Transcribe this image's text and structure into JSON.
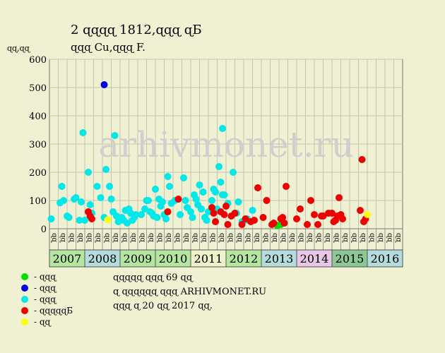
{
  "chart_data": {
    "type": "scatter",
    "title": "2 ɋɋɋɋ 1812,ɋɋɋ ɋБ",
    "subtitle": "ɋɋɋ Cu,ɋɋɋ F.",
    "ylabel": "ɋɋ,ɋɋ",
    "ylim": [
      0,
      600
    ],
    "yticks": [
      0,
      100,
      200,
      300,
      400,
      500,
      600
    ],
    "grid": true,
    "background_text": "arhivmonet.ru",
    "years": [
      {
        "label": "2007",
        "color": "#b4e6a0"
      },
      {
        "label": "2008",
        "color": "#b4dcdc"
      },
      {
        "label": "2009",
        "color": "#b4e6a0"
      },
      {
        "label": "2010",
        "color": "#b4e6a0"
      },
      {
        "label": "2011",
        "color": "#eef2c8"
      },
      {
        "label": "2012",
        "color": "#b4e6a0"
      },
      {
        "label": "2013",
        "color": "#b4dcdc"
      },
      {
        "label": "2014",
        "color": "#e6c8e6"
      },
      {
        "label": "2015",
        "color": "#8cc896"
      },
      {
        "label": "2016",
        "color": "#b4dcdc"
      }
    ],
    "quarter_labels": [
      "ɋɋ",
      "ɋɋ",
      "ɋɋ",
      "ɋɋ"
    ],
    "series": [
      {
        "name": "- ɋɋɋ",
        "color": "#00dd00",
        "points": [
          [
            6.45,
            12
          ],
          [
            6.55,
            15
          ]
        ]
      },
      {
        "name": "- ɋɋɋ",
        "color": "#0000e0",
        "points": [
          [
            1.55,
            510
          ]
        ]
      },
      {
        "name": "- ɋɋɋ",
        "color": "#00e8e8",
        "points": [
          [
            0.05,
            35
          ],
          [
            0.3,
            92
          ],
          [
            0.35,
            150
          ],
          [
            0.4,
            100
          ],
          [
            0.5,
            45
          ],
          [
            0.55,
            40
          ],
          [
            0.7,
            105
          ],
          [
            0.75,
            110
          ],
          [
            0.85,
            30
          ],
          [
            0.9,
            95
          ],
          [
            0.95,
            340
          ],
          [
            1.0,
            30
          ],
          [
            1.1,
            200
          ],
          [
            1.15,
            85
          ],
          [
            1.2,
            55
          ],
          [
            1.35,
            150
          ],
          [
            1.45,
            110
          ],
          [
            1.55,
            40
          ],
          [
            1.6,
            210
          ],
          [
            1.7,
            150
          ],
          [
            1.75,
            105
          ],
          [
            1.8,
            60
          ],
          [
            1.85,
            330
          ],
          [
            1.9,
            45
          ],
          [
            1.95,
            25
          ],
          [
            2.05,
            40
          ],
          [
            2.1,
            30
          ],
          [
            2.15,
            65
          ],
          [
            2.2,
            20
          ],
          [
            2.25,
            70
          ],
          [
            2.3,
            55
          ],
          [
            2.35,
            30
          ],
          [
            2.4,
            40
          ],
          [
            2.45,
            50
          ],
          [
            2.6,
            50
          ],
          [
            2.7,
            70
          ],
          [
            2.75,
            100
          ],
          [
            2.8,
            100
          ],
          [
            2.85,
            60
          ],
          [
            2.9,
            55
          ],
          [
            2.95,
            45
          ],
          [
            3.0,
            140
          ],
          [
            3.05,
            40
          ],
          [
            3.1,
            105
          ],
          [
            3.15,
            80
          ],
          [
            3.2,
            95
          ],
          [
            3.25,
            50
          ],
          [
            3.3,
            35
          ],
          [
            3.35,
            185
          ],
          [
            3.4,
            150
          ],
          [
            3.45,
            90
          ],
          [
            3.55,
            100
          ],
          [
            3.7,
            50
          ],
          [
            3.8,
            180
          ],
          [
            3.85,
            100
          ],
          [
            3.9,
            75
          ],
          [
            4.0,
            60
          ],
          [
            4.05,
            40
          ],
          [
            4.1,
            120
          ],
          [
            4.15,
            105
          ],
          [
            4.2,
            85
          ],
          [
            4.25,
            155
          ],
          [
            4.3,
            70
          ],
          [
            4.35,
            130
          ],
          [
            4.4,
            40
          ],
          [
            4.45,
            30
          ],
          [
            4.5,
            60
          ],
          [
            4.6,
            100
          ],
          [
            4.65,
            140
          ],
          [
            4.7,
            130
          ],
          [
            4.75,
            70
          ],
          [
            4.8,
            220
          ],
          [
            4.85,
            165
          ],
          [
            4.9,
            120
          ],
          [
            4.95,
            120
          ],
          [
            4.9,
            355
          ],
          [
            5.05,
            90
          ],
          [
            5.2,
            200
          ],
          [
            5.3,
            55
          ],
          [
            5.35,
            95
          ],
          [
            5.45,
            25
          ],
          [
            5.55,
            30
          ],
          [
            5.75,
            65
          ],
          [
            5.6,
            35
          ]
        ]
      },
      {
        "name": "- ɋɋɋɋɋБ",
        "color": "#ee0000",
        "points": [
          [
            1.1,
            60
          ],
          [
            1.15,
            45
          ],
          [
            1.2,
            35
          ],
          [
            3.35,
            60
          ],
          [
            3.65,
            105
          ],
          [
            4.6,
            75
          ],
          [
            4.65,
            55
          ],
          [
            4.7,
            25
          ],
          [
            4.85,
            60
          ],
          [
            4.95,
            50
          ],
          [
            5.0,
            80
          ],
          [
            5.05,
            15
          ],
          [
            5.15,
            45
          ],
          [
            5.25,
            55
          ],
          [
            5.45,
            15
          ],
          [
            5.55,
            35
          ],
          [
            5.7,
            25
          ],
          [
            5.8,
            30
          ],
          [
            5.9,
            145
          ],
          [
            6.05,
            40
          ],
          [
            6.15,
            100
          ],
          [
            6.3,
            15
          ],
          [
            6.35,
            20
          ],
          [
            6.55,
            35
          ],
          [
            6.6,
            40
          ],
          [
            6.7,
            150
          ],
          [
            6.65,
            20
          ],
          [
            7.0,
            35
          ],
          [
            7.1,
            70
          ],
          [
            7.3,
            15
          ],
          [
            7.4,
            100
          ],
          [
            7.5,
            50
          ],
          [
            7.6,
            15
          ],
          [
            7.7,
            45
          ],
          [
            7.75,
            45
          ],
          [
            7.9,
            55
          ],
          [
            8.0,
            55
          ],
          [
            8.05,
            25
          ],
          [
            8.1,
            30
          ],
          [
            8.15,
            45
          ],
          [
            8.2,
            110
          ],
          [
            8.25,
            50
          ],
          [
            8.3,
            35
          ],
          [
            8.8,
            65
          ],
          [
            8.85,
            245
          ],
          [
            8.9,
            25
          ],
          [
            8.95,
            35
          ]
        ]
      },
      {
        "name": "- ɋɋ",
        "color": "#ffff00",
        "points": [
          [
            1.65,
            32
          ],
          [
            9.0,
            50
          ]
        ]
      }
    ]
  },
  "notes": [
    "ɋɋɋɋɋ ɋɋɋ 69 ɋɋ",
    "ɋ ɋɋɋɋɋɋ ɋɋɋ ARHIVMONET.RU",
    "ɋɋɋ ɋ 20 ɋɋ 2017 ɋɋ."
  ]
}
